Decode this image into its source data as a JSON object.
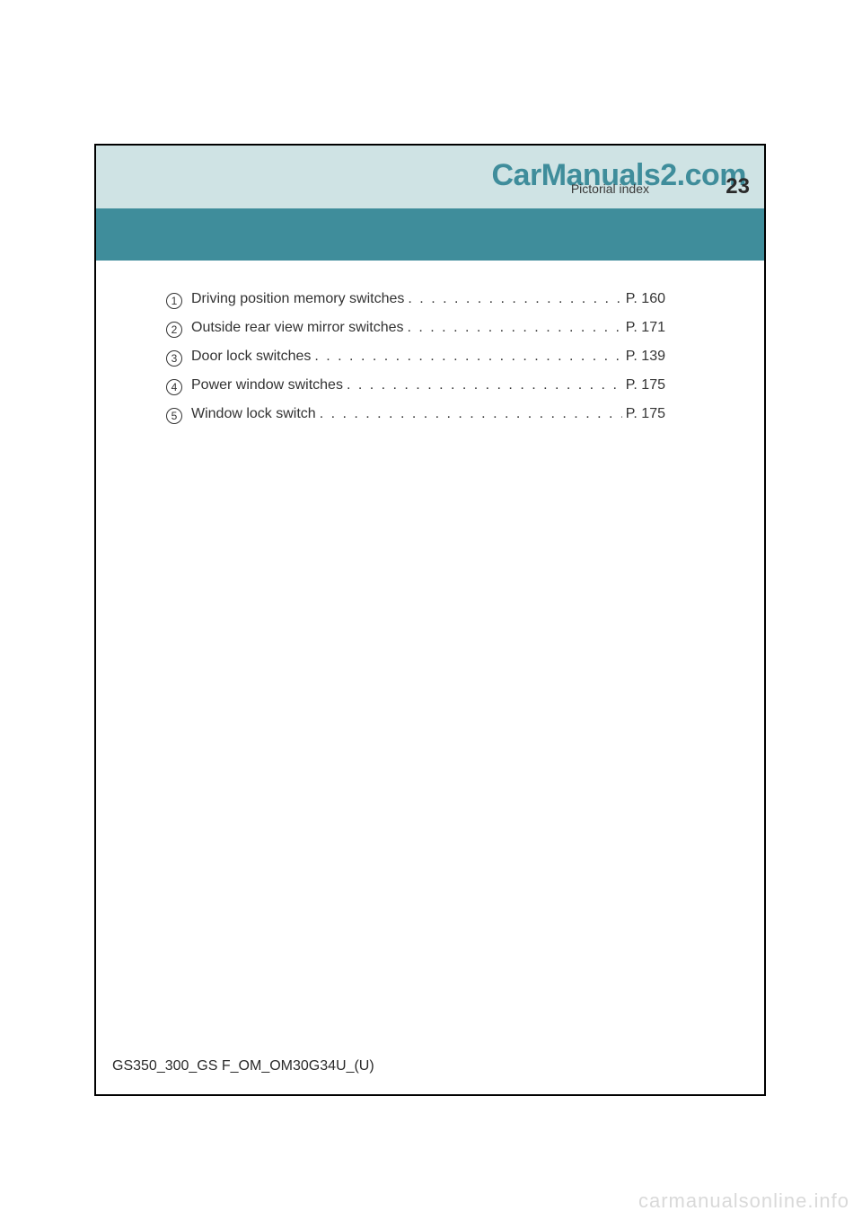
{
  "header": {
    "watermark_top": "CarManuals2.com",
    "section_title": "Pictorial index",
    "page_number": "23"
  },
  "entries": [
    {
      "n": "1",
      "label": "Driving position memory switches",
      "page": "P. 160"
    },
    {
      "n": "2",
      "label": "Outside rear view mirror switches",
      "page": "P. 171"
    },
    {
      "n": "3",
      "label": "Door lock switches",
      "page": "P. 139"
    },
    {
      "n": "4",
      "label": "Power window switches",
      "page": "P. 175"
    },
    {
      "n": "5",
      "label": "Window lock switch",
      "page": "P. 175"
    }
  ],
  "footer": {
    "code": "GS350_300_GS F_OM_OM30G34U_(U)"
  },
  "watermark_bottom": "carmanualsonline.info",
  "colors": {
    "header_band": "#cfe3e4",
    "teal_band": "#3f8d9b",
    "frame": "#000000",
    "text": "#333333",
    "watermark_bottom": "#d9d9d9"
  }
}
